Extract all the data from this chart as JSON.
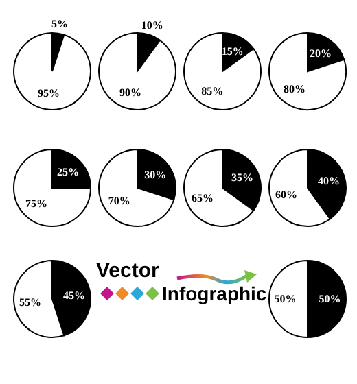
{
  "chart_data": [
    {
      "type": "pie",
      "categories": [
        null,
        null
      ],
      "values": [
        5,
        95
      ],
      "colors": [
        "#000000",
        "#ffffff"
      ],
      "value_labels": [
        "5%",
        "95%"
      ]
    },
    {
      "type": "pie",
      "categories": [
        null,
        null
      ],
      "values": [
        10,
        90
      ],
      "colors": [
        "#000000",
        "#ffffff"
      ],
      "value_labels": [
        "10%",
        "90%"
      ]
    },
    {
      "type": "pie",
      "categories": [
        null,
        null
      ],
      "values": [
        15,
        85
      ],
      "colors": [
        "#000000",
        "#ffffff"
      ],
      "value_labels": [
        "15%",
        "85%"
      ]
    },
    {
      "type": "pie",
      "categories": [
        null,
        null
      ],
      "values": [
        20,
        80
      ],
      "colors": [
        "#000000",
        "#ffffff"
      ],
      "value_labels": [
        "20%",
        "80%"
      ]
    },
    {
      "type": "pie",
      "categories": [
        null,
        null
      ],
      "values": [
        25,
        75
      ],
      "colors": [
        "#000000",
        "#ffffff"
      ],
      "value_labels": [
        "25%",
        "75%"
      ]
    },
    {
      "type": "pie",
      "categories": [
        null,
        null
      ],
      "values": [
        30,
        70
      ],
      "colors": [
        "#000000",
        "#ffffff"
      ],
      "value_labels": [
        "30%",
        "70%"
      ]
    },
    {
      "type": "pie",
      "categories": [
        null,
        null
      ],
      "values": [
        35,
        65
      ],
      "colors": [
        "#000000",
        "#ffffff"
      ],
      "value_labels": [
        "35%",
        "65%"
      ]
    },
    {
      "type": "pie",
      "categories": [
        null,
        null
      ],
      "values": [
        40,
        60
      ],
      "colors": [
        "#000000",
        "#ffffff"
      ],
      "value_labels": [
        "40%",
        "60%"
      ]
    },
    {
      "type": "pie",
      "categories": [
        null,
        null
      ],
      "values": [
        45,
        55
      ],
      "colors": [
        "#000000",
        "#ffffff"
      ],
      "value_labels": [
        "45%",
        "55%"
      ]
    },
    {
      "type": "other",
      "title": "Vector",
      "subtitle": "Infographic"
    },
    {
      "type": "pie",
      "categories": [
        null,
        null
      ],
      "values": [
        50,
        50
      ],
      "colors": [
        "#000000",
        "#ffffff"
      ],
      "value_labels": [
        "50%",
        "50%"
      ]
    }
  ]
}
